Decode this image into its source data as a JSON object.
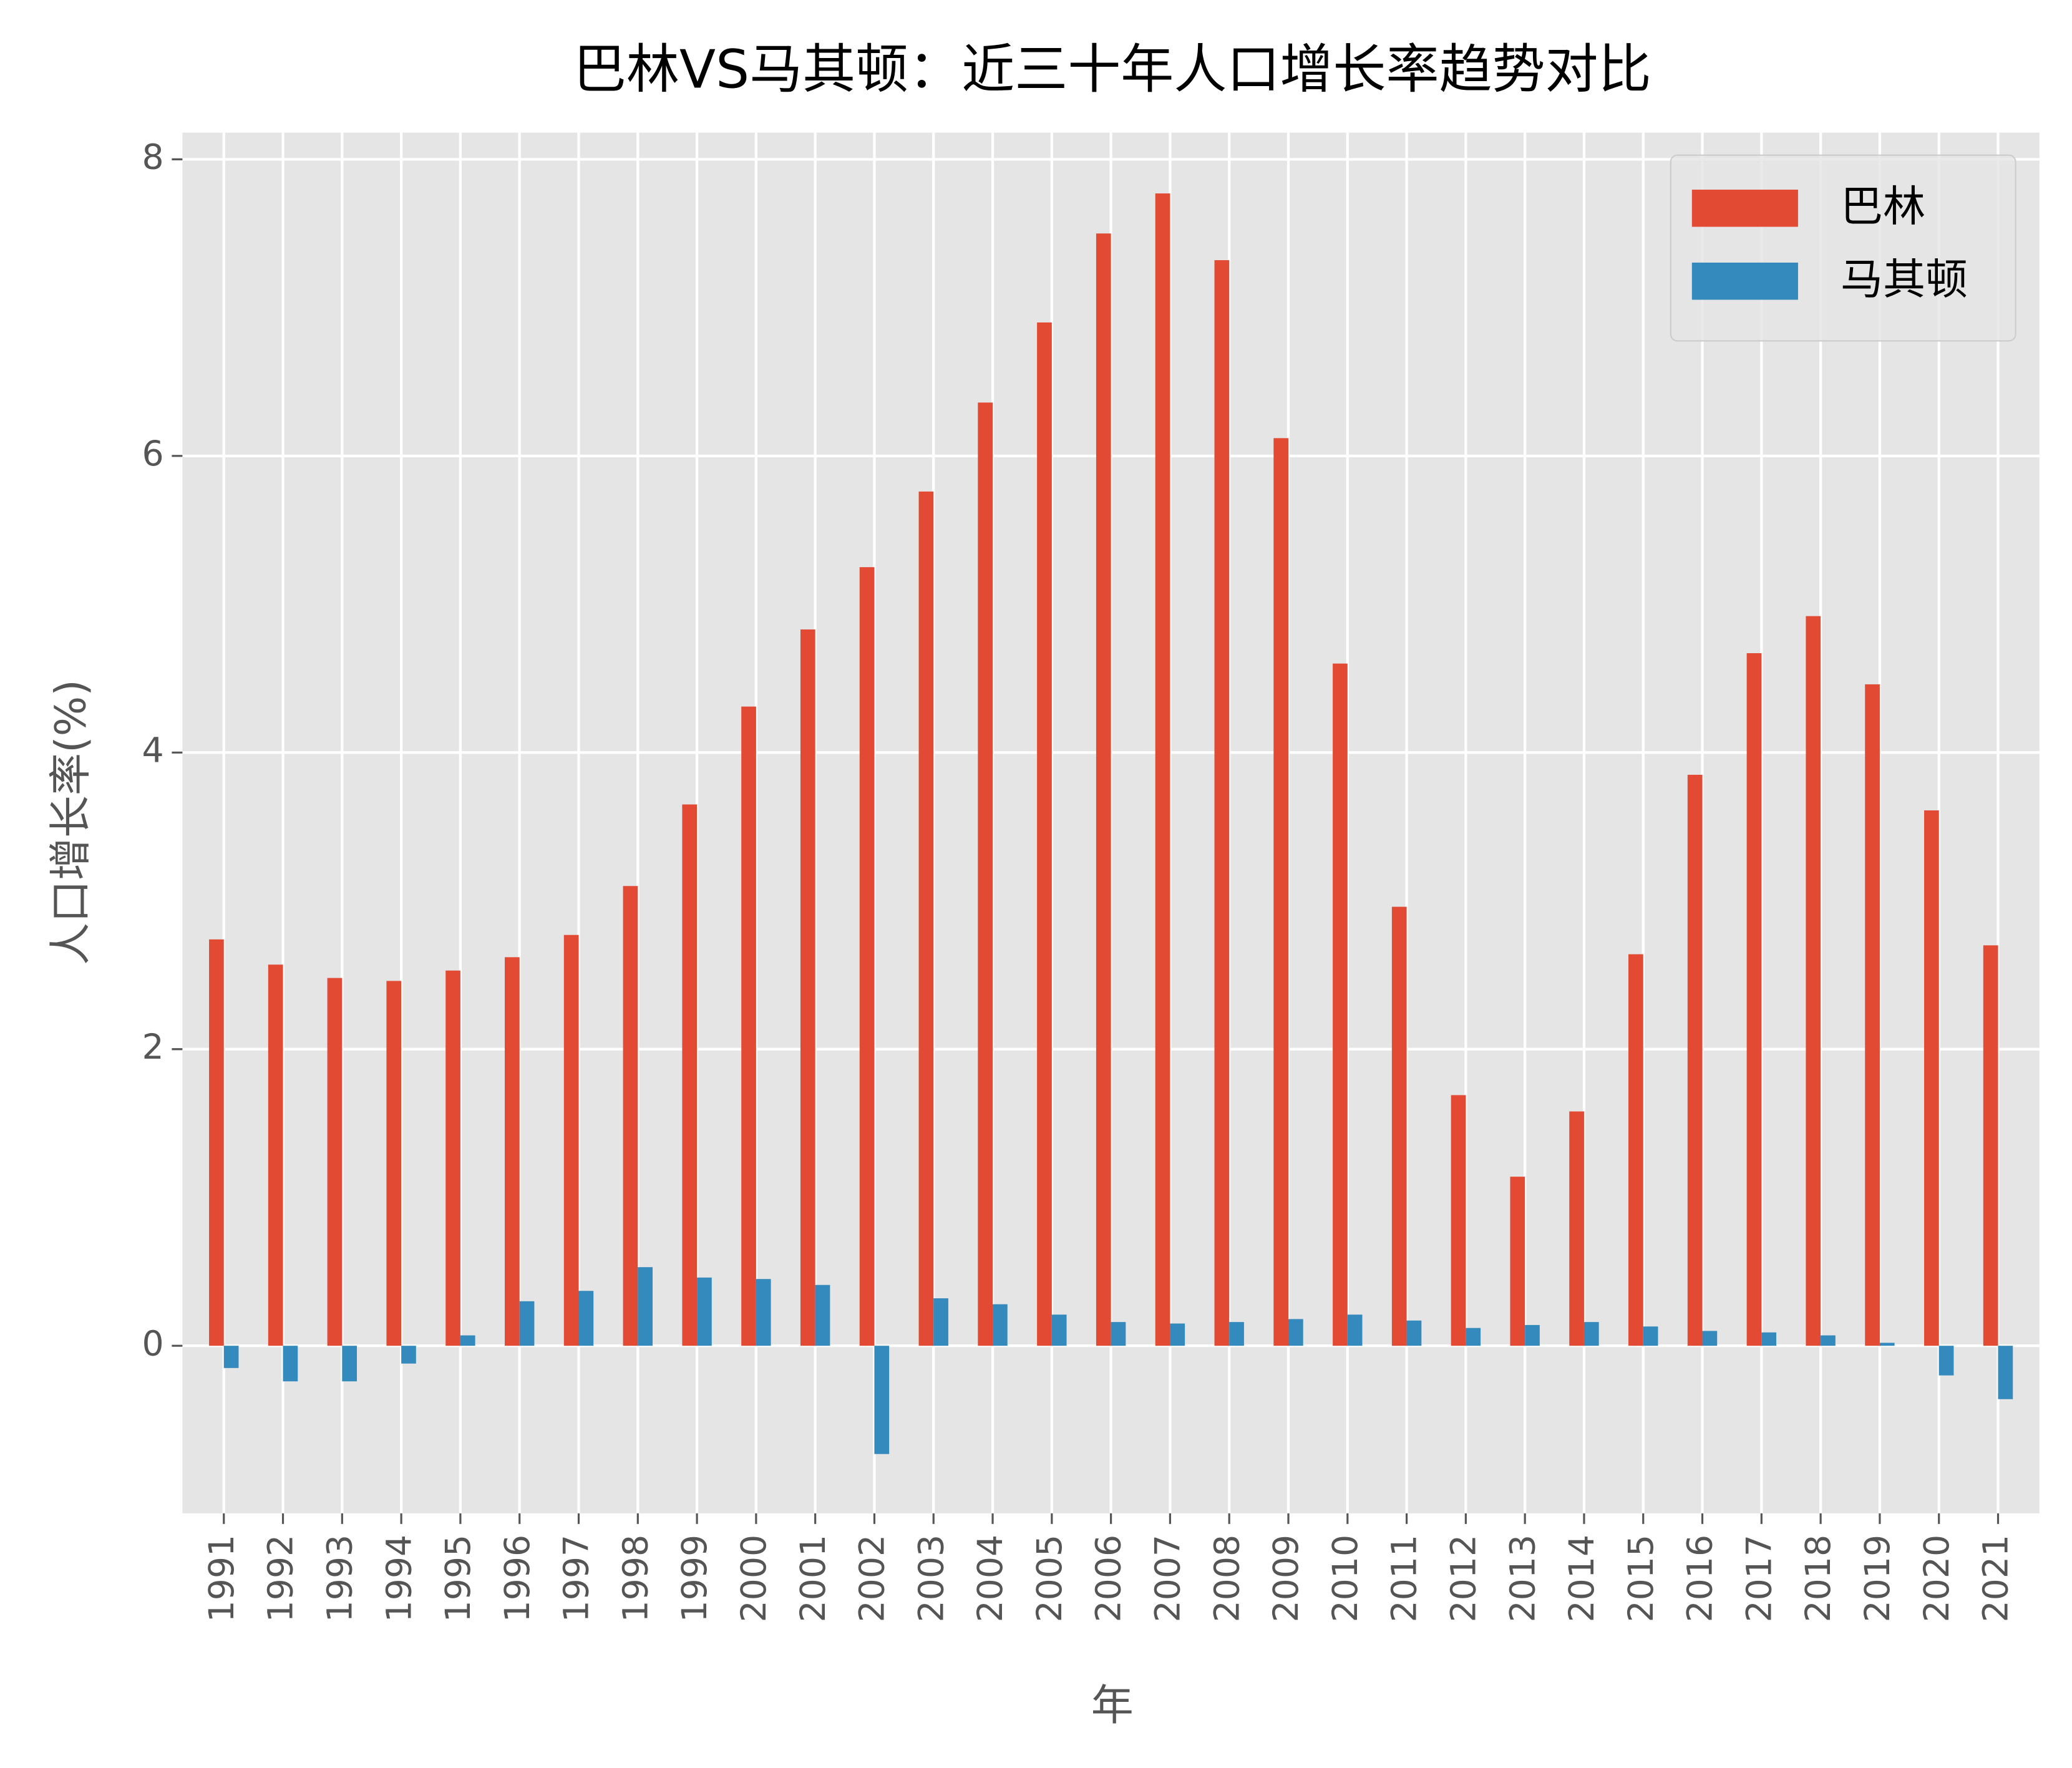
{
  "chart_data": {
    "type": "bar",
    "title": "巴林VS马其顿：近三十年人口增长率趋势对比",
    "x_label": "年",
    "y_label": "人口增长率(%)",
    "categories": [
      "1991",
      "1992",
      "1993",
      "1994",
      "1995",
      "1996",
      "1997",
      "1998",
      "1999",
      "2000",
      "2001",
      "2002",
      "2003",
      "2004",
      "2005",
      "2006",
      "2007",
      "2008",
      "2009",
      "2010",
      "2011",
      "2012",
      "2013",
      "2014",
      "2015",
      "2016",
      "2017",
      "2018",
      "2019",
      "2020",
      "2021"
    ],
    "series": [
      {
        "name": "巴林",
        "color": "#e24a33",
        "values": [
          2.74,
          2.57,
          2.48,
          2.46,
          2.53,
          2.62,
          2.77,
          3.1,
          3.65,
          4.31,
          4.83,
          5.25,
          5.76,
          6.36,
          6.9,
          7.5,
          7.77,
          7.32,
          6.12,
          4.6,
          2.96,
          1.69,
          1.14,
          1.58,
          2.64,
          3.85,
          4.67,
          4.92,
          4.46,
          3.61,
          2.7
        ]
      },
      {
        "name": "马其顿",
        "color": "#348abd",
        "values": [
          -0.15,
          -0.24,
          -0.24,
          -0.12,
          0.07,
          0.3,
          0.37,
          0.53,
          0.46,
          0.45,
          0.41,
          -0.73,
          0.32,
          0.28,
          0.21,
          0.16,
          0.15,
          0.16,
          0.18,
          0.21,
          0.17,
          0.12,
          0.14,
          0.16,
          0.13,
          0.1,
          0.09,
          0.07,
          0.02,
          -0.2,
          -0.36
        ]
      }
    ],
    "ylim": [
      -1.13,
      8.18
    ],
    "yticks": [
      0,
      2,
      4,
      6,
      8
    ],
    "grid": true,
    "legend": "upper right"
  }
}
